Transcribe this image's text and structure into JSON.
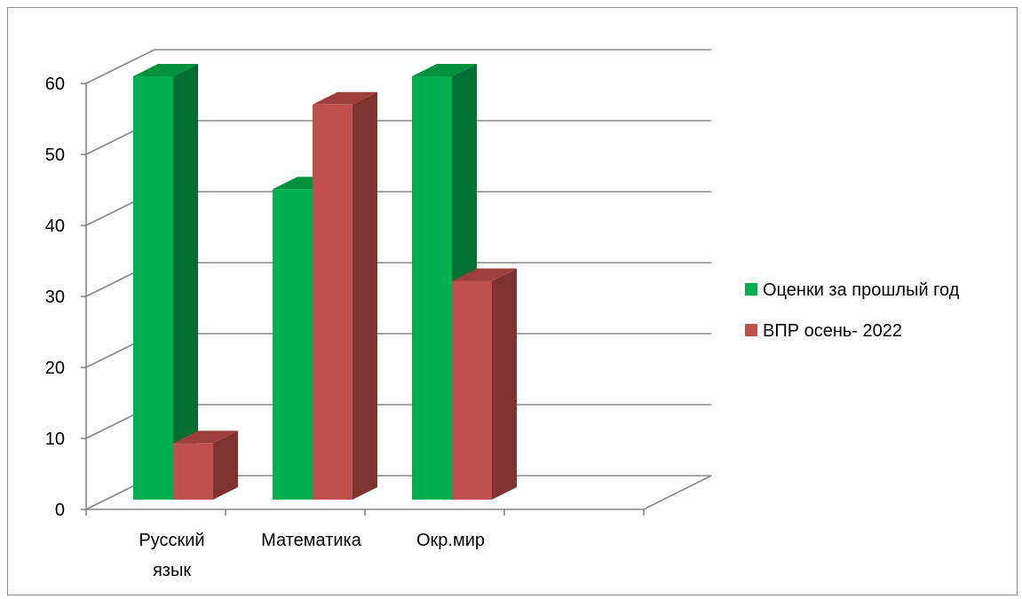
{
  "chart_data": {
    "type": "bar",
    "categories": [
      "Русский язык",
      "Математика",
      "Окр.мир"
    ],
    "category_label_lines": [
      [
        "Русский",
        "язык"
      ],
      [
        "Математика"
      ],
      [
        "Окр.мир"
      ]
    ],
    "series": [
      {
        "name": "Оценки за прошлый год",
        "values": [
          60,
          44,
          60
        ]
      },
      {
        "name": "ВПР осень- 2022",
        "values": [
          8,
          56,
          31
        ]
      }
    ],
    "title": "",
    "xlabel": "",
    "ylabel": "",
    "ylim": [
      0,
      60
    ],
    "yticks": [
      "0",
      "10",
      "20",
      "30",
      "40",
      "50",
      "60"
    ],
    "grid": true,
    "legend_position": "right",
    "colors": {
      "series": [
        {
          "front": "#00b050",
          "side": "#006f32",
          "top": "#00913f"
        },
        {
          "front": "#c0504d",
          "side": "#7f3331",
          "top": "#9e3f3d"
        }
      ],
      "grid": "#868686"
    }
  }
}
